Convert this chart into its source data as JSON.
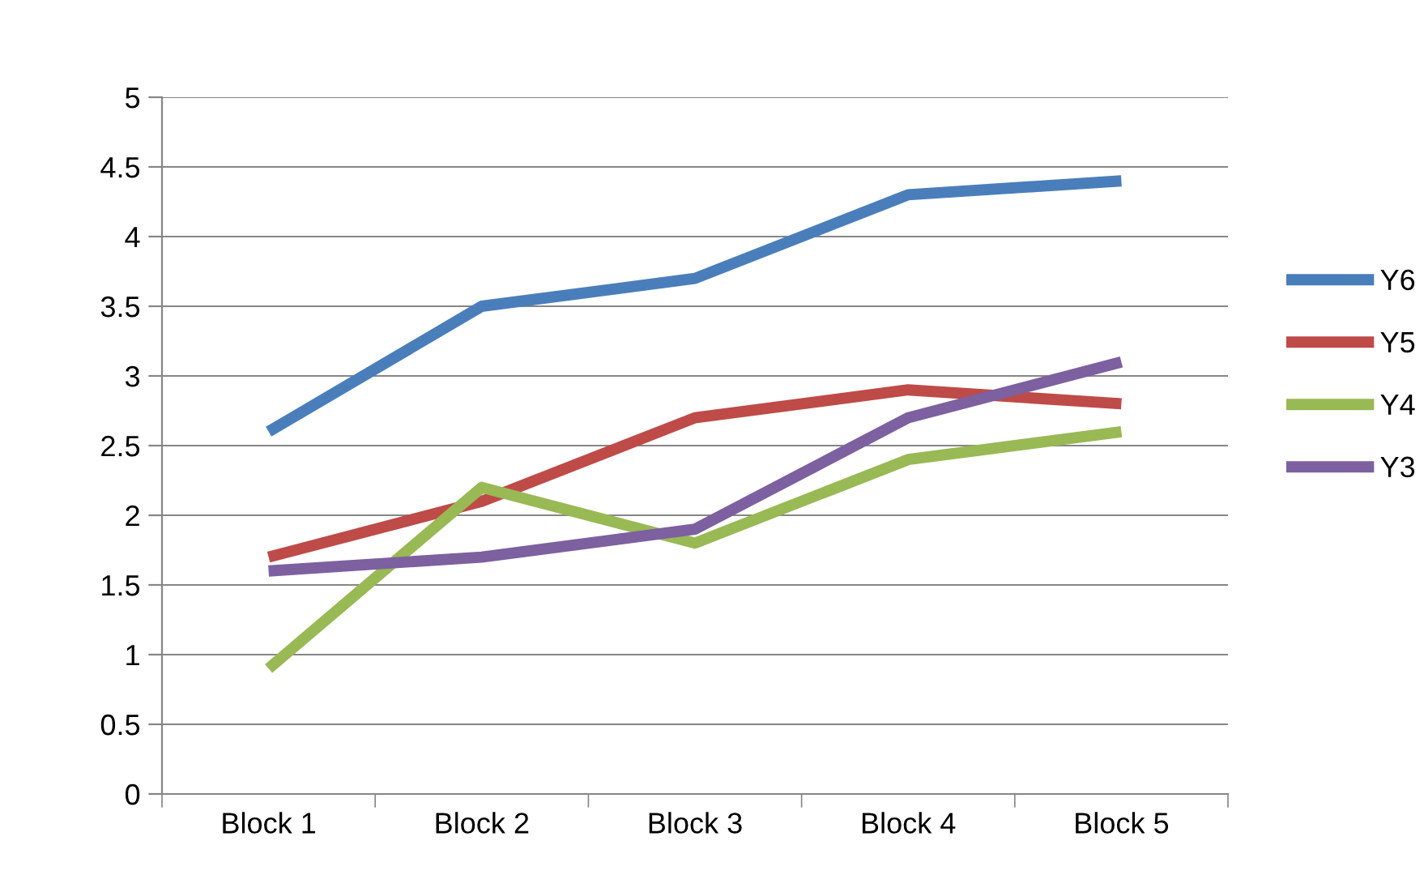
{
  "chart_data": {
    "type": "line",
    "categories": [
      "Block 1",
      "Block 2",
      "Block 3",
      "Block 4",
      "Block 5"
    ],
    "series": [
      {
        "name": "Y6",
        "color": "#4a7ebb",
        "values": [
          2.6,
          3.5,
          3.7,
          4.3,
          4.4
        ]
      },
      {
        "name": "Y5",
        "color": "#be4b48",
        "values": [
          1.7,
          2.1,
          2.7,
          2.9,
          2.8
        ]
      },
      {
        "name": "Y4",
        "color": "#98b954",
        "values": [
          0.9,
          2.2,
          1.8,
          2.4,
          2.6
        ]
      },
      {
        "name": "Y3",
        "color": "#7d60a0",
        "values": [
          1.6,
          1.7,
          1.9,
          2.7,
          3.1
        ]
      }
    ],
    "ylim": [
      0,
      5
    ],
    "yticks": [
      0,
      0.5,
      1,
      1.5,
      2,
      2.5,
      3,
      3.5,
      4,
      4.5,
      5
    ],
    "grid": "y",
    "legend": "right",
    "marker": "none",
    "line_style": "solid"
  }
}
